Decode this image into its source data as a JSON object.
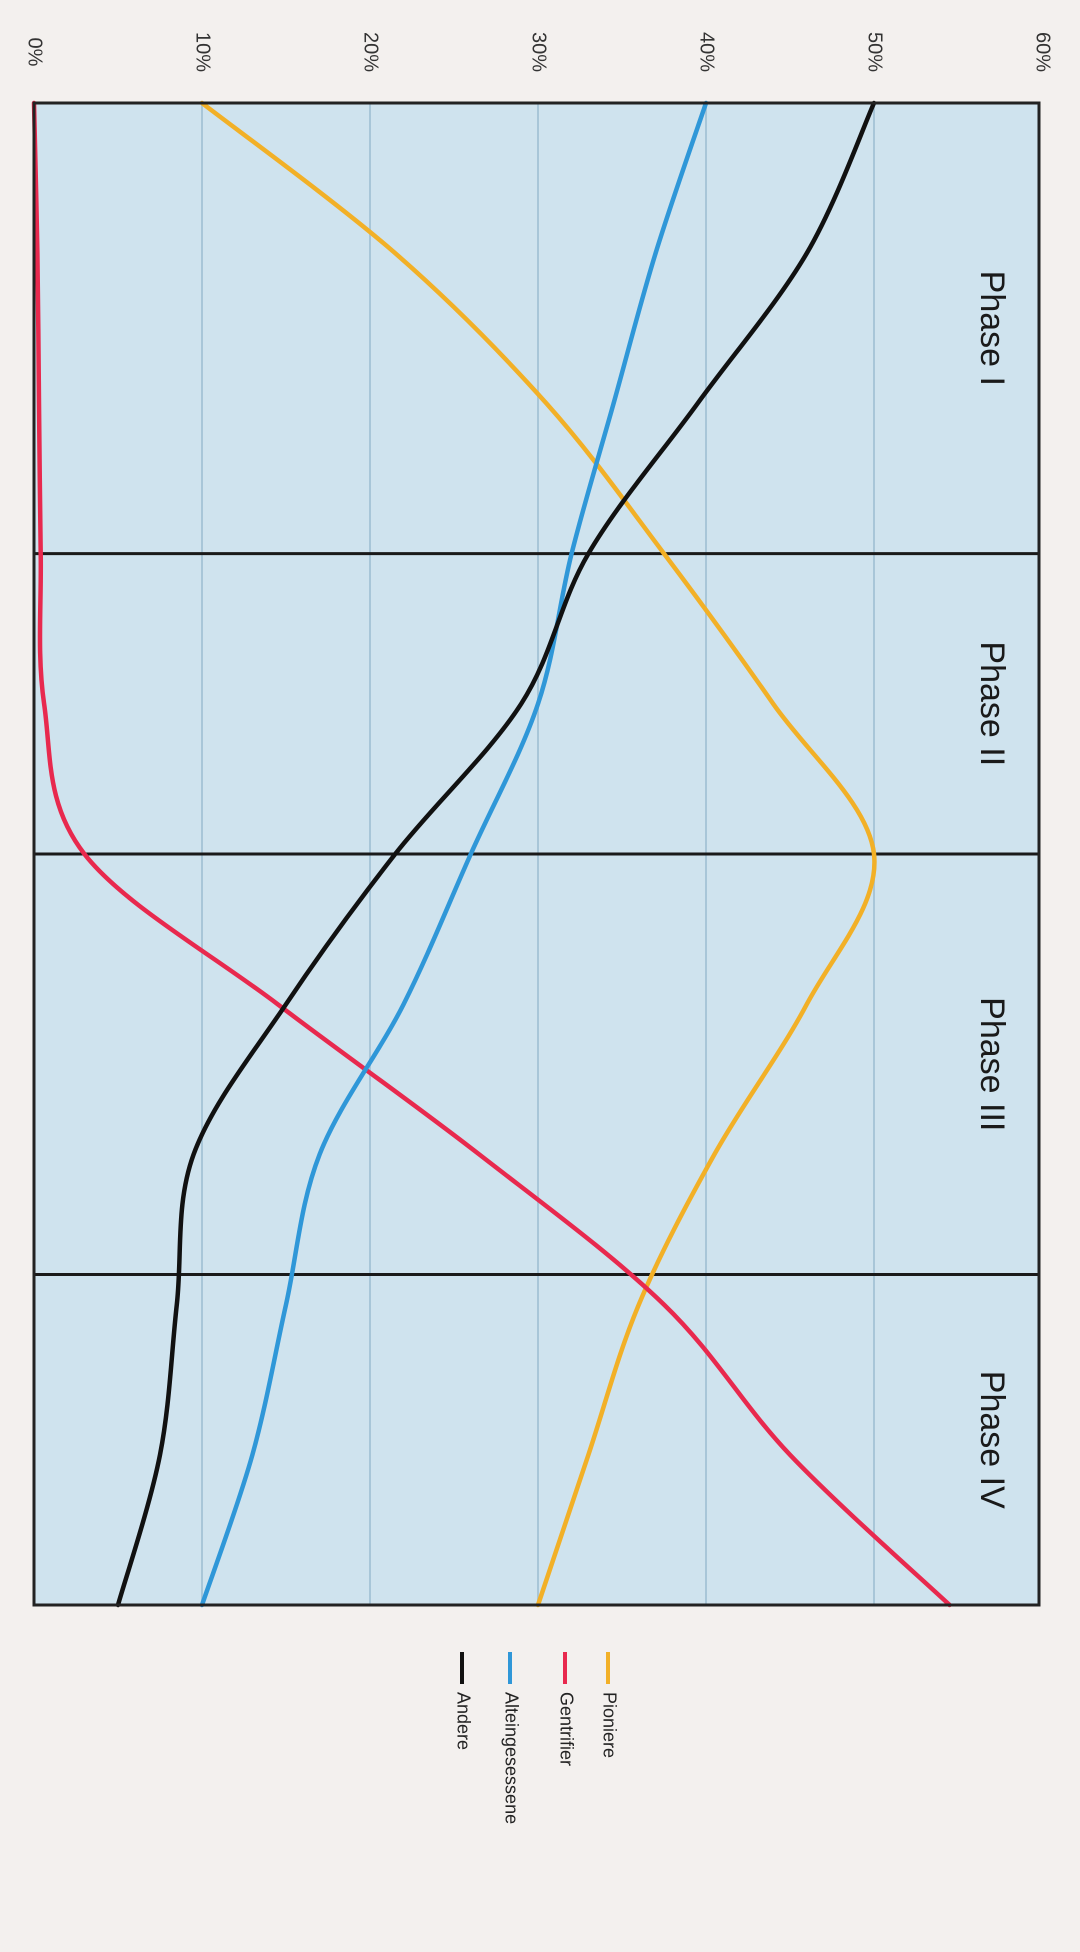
{
  "chart_data": {
    "type": "line",
    "orientation": "rotated 90° clockwise",
    "ylim": [
      0,
      60
    ],
    "y_ticks": [
      "0%",
      "10%",
      "20%",
      "30%",
      "40%",
      "50%",
      "60%"
    ],
    "y_tick_values": [
      0,
      10,
      20,
      30,
      40,
      50,
      60
    ],
    "x": [
      0,
      0.5,
      1,
      1.5,
      2,
      2.5,
      3,
      3.5,
      4,
      4.5,
      5
    ],
    "phases": [
      {
        "label": "Phase I",
        "start": 0,
        "end": 1.5
      },
      {
        "label": "Phase II",
        "start": 1.5,
        "end": 2.5
      },
      {
        "label": "Phase III",
        "start": 2.5,
        "end": 3.9
      },
      {
        "label": "Phase IV",
        "start": 3.9,
        "end": 5
      }
    ],
    "series": [
      {
        "name": "Pioniere",
        "color": "#f2b027",
        "values": [
          10,
          21.5,
          30.5,
          37.5,
          44,
          50,
          46,
          40.5,
          36,
          33,
          30
        ]
      },
      {
        "name": "Gentrifier",
        "color": "#e8294e",
        "values": [
          0,
          0.2,
          0.3,
          0.4,
          0.6,
          3,
          14.5,
          26.5,
          37.5,
          45,
          54.5
        ]
      },
      {
        "name": "Alteingesessene",
        "color": "#2f97d8",
        "values": [
          40,
          37,
          34.5,
          32,
          30,
          26,
          22,
          17,
          15,
          13,
          10
        ]
      },
      {
        "name": "Andere",
        "color": "#111111",
        "values": [
          50,
          46,
          39.5,
          33,
          29,
          21.5,
          15,
          9.5,
          8.5,
          7.5,
          5
        ]
      }
    ],
    "grid": true,
    "legend_position": "below plot"
  }
}
